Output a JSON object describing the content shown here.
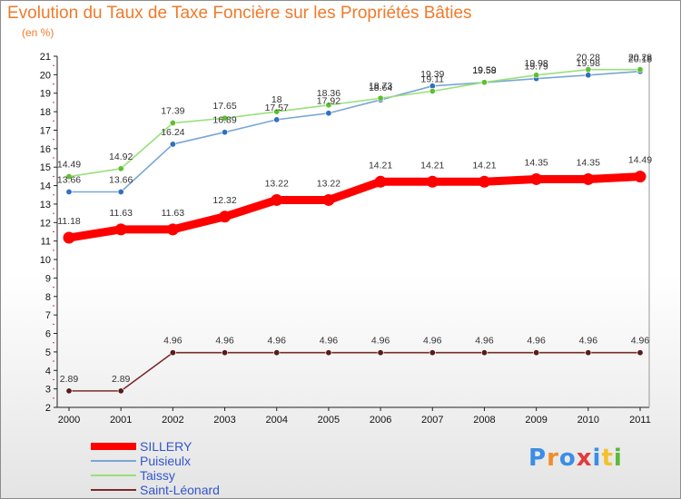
{
  "header": {
    "title": "Evolution du Taux de Taxe Foncière sur les Propriétés Bâties",
    "subtitle": "(en %)"
  },
  "logo": {
    "text": "Proxiti",
    "colors": [
      "#3a8ee6",
      "#f28c28",
      "#3a8ee6",
      "#e23b3b",
      "#3a8ee6",
      "#f2c12e",
      "#5cb83a"
    ]
  },
  "chart_data": {
    "type": "line",
    "title": "Evolution du Taux de Taxe Foncière sur les Propriétés Bâties",
    "subtitle": "(en %)",
    "x": [
      "2000",
      "2001",
      "2002",
      "2003",
      "2004",
      "2005",
      "2006",
      "2007",
      "2008",
      "2009",
      "2010",
      "2011"
    ],
    "ylim": [
      2,
      21
    ],
    "yticks": [
      2,
      3,
      4,
      5,
      6,
      7,
      8,
      9,
      10,
      11,
      12,
      13,
      14,
      15,
      16,
      17,
      18,
      19,
      20,
      21
    ],
    "grid": false,
    "legend_position": "bottom-left",
    "series": [
      {
        "name": "SILLERY",
        "color": "#ff0000",
        "marker": "#ff0000",
        "values": [
          11.18,
          11.63,
          11.63,
          12.32,
          13.22,
          13.22,
          14.21,
          14.21,
          14.21,
          14.35,
          14.35,
          14.49
        ],
        "labels": [
          "11.18",
          "11.63",
          "11.63",
          "12.32",
          "13.22",
          "13.22",
          "14.21",
          "14.21",
          "14.21",
          "14.35",
          "14.35",
          "14.49"
        ]
      },
      {
        "name": "Puisieulx",
        "color": "#7aa6d6",
        "marker": "#2f70c0",
        "values": [
          13.66,
          13.66,
          16.24,
          16.89,
          17.57,
          17.92,
          18.64,
          19.39,
          19.58,
          19.79,
          19.98,
          20.18
        ],
        "labels": [
          "13.66",
          "13.66",
          "16.24",
          "16.89",
          "17.57",
          "17.92",
          "18.64",
          "19.39",
          "19.58",
          "19.79",
          "19.98",
          "20.18"
        ]
      },
      {
        "name": "Taissy",
        "color": "#99e07a",
        "marker": "#5cc030",
        "values": [
          14.49,
          14.92,
          17.39,
          17.65,
          18,
          18.36,
          18.73,
          19.11,
          19.59,
          19.98,
          20.28,
          20.28
        ],
        "labels": [
          "14.49",
          "14.92",
          "17.39",
          "17.65",
          "18",
          "18.36",
          "18.73",
          "19.11",
          "19.59",
          "19.98",
          "20.28",
          "20.28"
        ]
      },
      {
        "name": "Saint-Léonard",
        "color": "#7a2b2b",
        "marker": "#5c1a1a",
        "values": [
          2.89,
          2.89,
          4.96,
          4.96,
          4.96,
          4.96,
          4.96,
          4.96,
          4.96,
          4.96,
          4.96,
          4.96
        ],
        "labels": [
          "2.89",
          "2.89",
          "4.96",
          "4.96",
          "4.96",
          "4.96",
          "4.96",
          "4.96",
          "4.96",
          "4.96",
          "4.96",
          "4.96"
        ]
      }
    ]
  }
}
